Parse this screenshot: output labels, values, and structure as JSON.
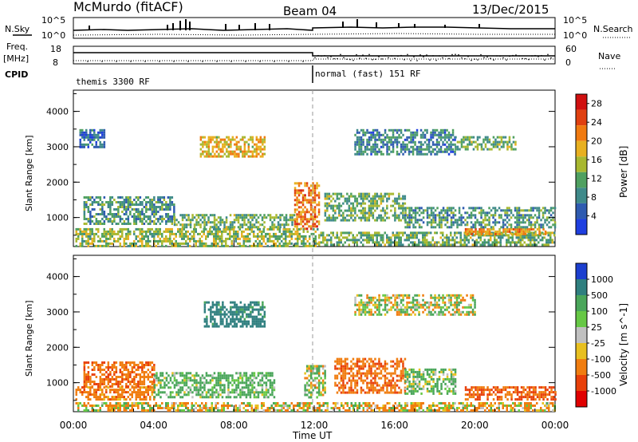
{
  "header": {
    "title": "McMurdo (fitACF)",
    "beam": "Beam 04",
    "date": "13/Dec/2015"
  },
  "side_labels": {
    "nsky": "N.Sky",
    "nsearch": "N.Search",
    "freq": "Freq.",
    "freq_unit": "[MHz]",
    "nave": "Nave",
    "cpid": "CPID"
  },
  "noise_axis": {
    "left_top": "10^5",
    "left_bottom": "10^0",
    "right_top": "10^5",
    "right_bottom": "10^0"
  },
  "freq_axis": {
    "top": "18",
    "bottom": "8"
  },
  "nave_axis": {
    "top": "60",
    "bottom": "0"
  },
  "cpid": [
    {
      "label": "themis 3300 RF",
      "start_hour": 0
    },
    {
      "label": "normal (fast) 151 RF",
      "start_hour": 12
    }
  ],
  "x_axis": {
    "label": "Time UT",
    "ticks": [
      "00:00",
      "04:00",
      "08:00",
      "12:00",
      "16:00",
      "20:00",
      "00:00"
    ],
    "range_hours": [
      0,
      24
    ]
  },
  "y_axis": {
    "label": "Slant Range [km]",
    "ticks": [
      "1000",
      "2000",
      "3000",
      "4000"
    ],
    "range_km": [
      180,
      4600
    ]
  },
  "chart_data": [
    {
      "type": "heatmap",
      "name": "power",
      "title": "Beam 04",
      "xlabel": "Time UT",
      "ylabel": "Slant Range [km]",
      "colorbar_label": "Power [dB]",
      "colorbar_ticks": [
        "4",
        "8",
        "12",
        "16",
        "20",
        "24",
        "28"
      ],
      "color_range": [
        0,
        30
      ],
      "colors": [
        "#1f3fe0",
        "#2f5bb0",
        "#3f8a8a",
        "#4fa060",
        "#a8b830",
        "#e8b020",
        "#f07a10",
        "#e04010",
        "#d01010"
      ],
      "regions": [
        {
          "t": [
            0.1,
            12.2
          ],
          "r": [
            200,
            700
          ],
          "value": 14
        },
        {
          "t": [
            12.2,
            24
          ],
          "r": [
            200,
            600
          ],
          "value": 12
        },
        {
          "t": [
            19.5,
            23.5
          ],
          "r": [
            500,
            700
          ],
          "value": 20
        },
        {
          "t": [
            0.5,
            5
          ],
          "r": [
            800,
            1600
          ],
          "value": 10
        },
        {
          "t": [
            5,
            11
          ],
          "r": [
            700,
            1100
          ],
          "value": 12
        },
        {
          "t": [
            6.3,
            9.5
          ],
          "r": [
            2700,
            3300
          ],
          "value": 18
        },
        {
          "t": [
            11,
            12.2
          ],
          "r": [
            700,
            2000
          ],
          "value": 22
        },
        {
          "t": [
            12.5,
            16.5
          ],
          "r": [
            900,
            1700
          ],
          "value": 12
        },
        {
          "t": [
            16.5,
            24
          ],
          "r": [
            700,
            1300
          ],
          "value": 10
        },
        {
          "t": [
            0.3,
            1.5
          ],
          "r": [
            3000,
            3500
          ],
          "value": 6
        },
        {
          "t": [
            14,
            19
          ],
          "r": [
            2800,
            3500
          ],
          "value": 8
        },
        {
          "t": [
            19,
            22
          ],
          "r": [
            2900,
            3300
          ],
          "value": 12
        }
      ]
    },
    {
      "type": "heatmap",
      "name": "velocity",
      "xlabel": "Time UT",
      "ylabel": "Slant Range [km]",
      "colorbar_label": "Velocity [m s^-1]",
      "colorbar_ticks": [
        "1000",
        "500",
        "100",
        "25",
        "-25",
        "-100",
        "-500",
        "-1000"
      ],
      "color_range": [
        -1000,
        1000
      ],
      "colors": [
        "#1c3fcf",
        "#2f7f7f",
        "#4aa65a",
        "#66c845",
        "#c0c0c0",
        "#e8c020",
        "#f07d10",
        "#e8400a",
        "#e00000"
      ],
      "regions": [
        {
          "t": [
            0.1,
            24
          ],
          "r": [
            200,
            450
          ],
          "value": -80
        },
        {
          "t": [
            0.1,
            4
          ],
          "r": [
            500,
            900
          ],
          "value": -300
        },
        {
          "t": [
            0.5,
            4
          ],
          "r": [
            900,
            1600
          ],
          "value": -400
        },
        {
          "t": [
            4,
            10
          ],
          "r": [
            600,
            1300
          ],
          "value": 200
        },
        {
          "t": [
            6.5,
            9.5
          ],
          "r": [
            2600,
            3300
          ],
          "value": 700
        },
        {
          "t": [
            11.5,
            12.5
          ],
          "r": [
            600,
            1500
          ],
          "value": 60
        },
        {
          "t": [
            13,
            16.5
          ],
          "r": [
            700,
            1700
          ],
          "value": -400
        },
        {
          "t": [
            16.5,
            19
          ],
          "r": [
            700,
            1400
          ],
          "value": 150
        },
        {
          "t": [
            19.5,
            24
          ],
          "r": [
            500,
            900
          ],
          "value": -500
        },
        {
          "t": [
            14,
            20
          ],
          "r": [
            2900,
            3500
          ],
          "value": 10
        }
      ]
    }
  ]
}
